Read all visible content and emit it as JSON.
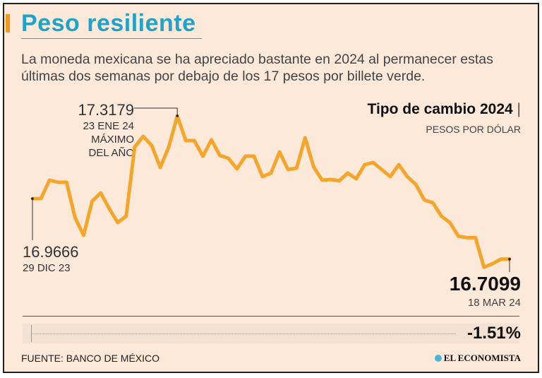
{
  "header": {
    "title": "Peso resiliente",
    "subtitle": "La moneda mexicana se ha apreciado bastante en 2024 al permanecer estas últimas dos semanas por debajo de los 17 pesos por billete verde."
  },
  "chart_data": {
    "type": "line",
    "title": "Tipo de cambio 2024",
    "title_separator": "|",
    "ylabel": "PESOS POR DÓLAR",
    "ylim": [
      16.61,
      17.39
    ],
    "grid": false,
    "color": "#f5a52a",
    "x_start": "29 DIC 23",
    "x_end": "18 MAR 24",
    "values": [
      16.9666,
      16.967,
      17.045,
      17.036,
      17.036,
      16.886,
      16.811,
      16.955,
      16.991,
      16.925,
      16.865,
      16.892,
      17.186,
      17.231,
      17.192,
      17.099,
      17.186,
      17.3179,
      17.213,
      17.213,
      17.147,
      17.216,
      17.15,
      17.138,
      17.093,
      17.147,
      17.147,
      17.06,
      17.075,
      17.165,
      17.09,
      17.096,
      17.225,
      17.102,
      17.045,
      17.048,
      17.042,
      17.075,
      17.051,
      17.111,
      17.12,
      17.09,
      17.06,
      17.111,
      17.06,
      17.027,
      16.961,
      16.949,
      16.892,
      16.865,
      16.807,
      16.801,
      16.801,
      16.675,
      16.69,
      16.7099,
      16.7099
    ],
    "annotations": {
      "start": {
        "value": "16.9666",
        "date": "29 DIC 23"
      },
      "max": {
        "value": "17.3179",
        "date": "23 ENE 24",
        "label1": "MÁXIMO",
        "label2": "DEL AÑO"
      },
      "end": {
        "value": "16.7099",
        "date": "18 MAR 24"
      }
    },
    "change": "-1.51%"
  },
  "footer": {
    "source": "FUENTE: BANCO DE MÉXICO",
    "logo": "EL ECONOMISTA"
  },
  "colors": {
    "accent": "#f39a1e",
    "title": "#1fa3c6",
    "line": "#f5a52a",
    "background": "#fce9da"
  }
}
